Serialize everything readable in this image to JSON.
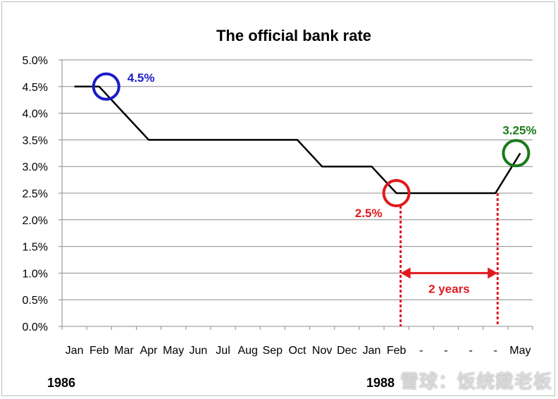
{
  "chart_data": {
    "type": "line",
    "title": "The official bank rate",
    "categories": [
      "Jan",
      "Feb",
      "Mar",
      "Apr",
      "May",
      "Jun",
      "Jul",
      "Aug",
      "Sep",
      "Oct",
      "Nov",
      "Dec",
      "Jan",
      "Feb",
      "-",
      "-",
      "-",
      "-",
      "May"
    ],
    "series": [
      {
        "values": [
          4.5,
          4.5,
          4.0,
          3.5,
          3.5,
          3.5,
          3.5,
          3.5,
          3.5,
          3.5,
          3.0,
          3.0,
          3.0,
          2.5,
          2.5,
          2.5,
          2.5,
          2.5,
          3.25
        ]
      }
    ],
    "ylim": [
      0,
      5
    ],
    "yticks": [
      "0.0%",
      "0.5%",
      "1.0%",
      "1.5%",
      "2.0%",
      "2.5%",
      "3.0%",
      "3.5%",
      "4.0%",
      "4.5%",
      "5.0%"
    ],
    "grid": true,
    "year_labels": {
      "start": "1986",
      "end": "1988"
    },
    "annotations": [
      {
        "text": "4.5%",
        "category_index": 1,
        "value": 4.5,
        "color": "#1c1cc8"
      },
      {
        "text": "2.5%",
        "category_index": 13,
        "value": 2.5,
        "color": "#e0191e"
      },
      {
        "text": "3.25%",
        "category_index": 18,
        "value": 3.25,
        "color": "#1a7a1a"
      }
    ],
    "span_annotation": {
      "text": "2 years",
      "from_index": 13,
      "to_index": 17,
      "value": 1.0,
      "color": "#e0191e"
    },
    "line_color": "#000000",
    "grid_color": "#8c8c8c"
  },
  "watermark": "雪球：饭统戴老板"
}
